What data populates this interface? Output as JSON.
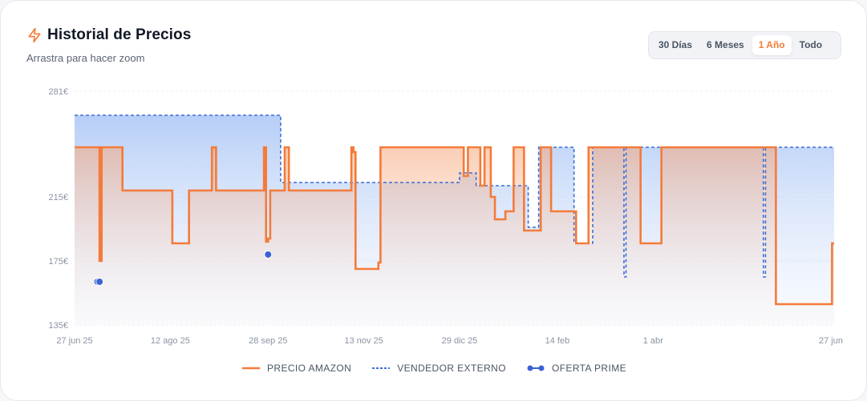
{
  "header": {
    "title": "Historial de Precios",
    "subtitle": "Arrastra para hacer zoom",
    "icon": "lightning-icon"
  },
  "range_buttons": [
    {
      "label": "30 Días",
      "active": false
    },
    {
      "label": "6 Meses",
      "active": false
    },
    {
      "label": "1 Año",
      "active": true
    },
    {
      "label": "Todo",
      "active": false
    }
  ],
  "legend": {
    "amazon": "PRECIO AMAZON",
    "external": "VENDEDOR EXTERNO",
    "prime": "OFERTA PRIME"
  },
  "colors": {
    "amazon": "#f47b3a",
    "external": "#3b6fd8",
    "prime": "#3b63d4",
    "accent": "#f47b3a"
  },
  "chart_data": {
    "type": "line",
    "step": true,
    "x_start": "2025-06-27",
    "x_end": "2026-06-27",
    "x_ticks": [
      {
        "date": "2025-06-27",
        "label": "27 jun 25"
      },
      {
        "date": "2025-08-12",
        "label": "12 ago 25"
      },
      {
        "date": "2025-09-28",
        "label": "28 sep 25"
      },
      {
        "date": "2025-11-13",
        "label": "13 nov 25"
      },
      {
        "date": "2025-12-29",
        "label": "29 dic 25"
      },
      {
        "date": "2026-02-14",
        "label": "14 feb"
      },
      {
        "date": "2026-04-01",
        "label": "1 abr"
      },
      {
        "date": "2026-06-27",
        "label": "27 jun"
      }
    ],
    "y_ticks": [
      {
        "value": 135,
        "label": "135€"
      },
      {
        "value": 175,
        "label": "175€"
      },
      {
        "value": 215,
        "label": "215€"
      },
      {
        "value": 281,
        "label": "281€"
      }
    ],
    "ylim": [
      135,
      281
    ],
    "grid": true,
    "legend_position": "bottom",
    "series": [
      {
        "name": "PRECIO AMAZON",
        "style": "solid",
        "points": [
          [
            "2025-06-27",
            246
          ],
          [
            "2025-07-09",
            246
          ],
          [
            "2025-07-09",
            175
          ],
          [
            "2025-07-10",
            175
          ],
          [
            "2025-07-10",
            246
          ],
          [
            "2025-07-20",
            246
          ],
          [
            "2025-07-20",
            219
          ],
          [
            "2025-08-13",
            219
          ],
          [
            "2025-08-13",
            186
          ],
          [
            "2025-08-21",
            186
          ],
          [
            "2025-08-21",
            219
          ],
          [
            "2025-09-01",
            219
          ],
          [
            "2025-09-01",
            246
          ],
          [
            "2025-09-03",
            246
          ],
          [
            "2025-09-03",
            219
          ],
          [
            "2025-09-26",
            219
          ],
          [
            "2025-09-26",
            246
          ],
          [
            "2025-09-27",
            246
          ],
          [
            "2025-09-27",
            187
          ],
          [
            "2025-09-28",
            187
          ],
          [
            "2025-09-28",
            189
          ],
          [
            "2025-09-29",
            189
          ],
          [
            "2025-09-29",
            219
          ],
          [
            "2025-10-06",
            219
          ],
          [
            "2025-10-06",
            246
          ],
          [
            "2025-10-08",
            246
          ],
          [
            "2025-10-08",
            219
          ],
          [
            "2025-11-07",
            219
          ],
          [
            "2025-11-07",
            246
          ],
          [
            "2025-11-08",
            246
          ],
          [
            "2025-11-08",
            243
          ],
          [
            "2025-11-09",
            243
          ],
          [
            "2025-11-09",
            170
          ],
          [
            "2025-11-20",
            170
          ],
          [
            "2025-11-20",
            174
          ],
          [
            "2025-11-21",
            174
          ],
          [
            "2025-11-21",
            246
          ],
          [
            "2025-12-31",
            246
          ],
          [
            "2025-12-31",
            228
          ],
          [
            "2026-01-02",
            228
          ],
          [
            "2026-01-02",
            246
          ],
          [
            "2026-01-08",
            246
          ],
          [
            "2026-01-08",
            222
          ],
          [
            "2026-01-10",
            222
          ],
          [
            "2026-01-10",
            246
          ],
          [
            "2026-01-13",
            246
          ],
          [
            "2026-01-13",
            215
          ],
          [
            "2026-01-15",
            215
          ],
          [
            "2026-01-15",
            201
          ],
          [
            "2026-01-20",
            201
          ],
          [
            "2026-01-20",
            206
          ],
          [
            "2026-01-24",
            206
          ],
          [
            "2026-01-24",
            246
          ],
          [
            "2026-01-29",
            246
          ],
          [
            "2026-01-29",
            194
          ],
          [
            "2026-02-06",
            194
          ],
          [
            "2026-02-06",
            246
          ],
          [
            "2026-02-11",
            246
          ],
          [
            "2026-02-11",
            206
          ],
          [
            "2026-02-23",
            206
          ],
          [
            "2026-02-23",
            186
          ],
          [
            "2026-03-01",
            186
          ],
          [
            "2026-03-01",
            246
          ],
          [
            "2026-03-26",
            246
          ],
          [
            "2026-03-26",
            186
          ],
          [
            "2026-04-05",
            186
          ],
          [
            "2026-04-05",
            246
          ],
          [
            "2026-05-30",
            246
          ],
          [
            "2026-05-30",
            148
          ],
          [
            "2026-06-26",
            148
          ],
          [
            "2026-06-26",
            186
          ],
          [
            "2026-06-27",
            186
          ]
        ]
      },
      {
        "name": "VENDEDOR EXTERNO",
        "style": "dashed",
        "points": [
          [
            "2025-06-27",
            266
          ],
          [
            "2025-10-04",
            266
          ],
          [
            "2025-10-04",
            224
          ],
          [
            "2025-12-29",
            224
          ],
          [
            "2025-12-29",
            230
          ],
          [
            "2026-01-06",
            230
          ],
          [
            "2026-01-06",
            222
          ],
          [
            "2026-01-31",
            222
          ],
          [
            "2026-01-31",
            196
          ],
          [
            "2026-02-05",
            196
          ],
          [
            "2026-02-05",
            246
          ],
          [
            "2026-02-22",
            246
          ],
          [
            "2026-02-22",
            186
          ],
          [
            "2026-03-03",
            186
          ],
          [
            "2026-03-03",
            246
          ],
          [
            "2026-03-18",
            246
          ],
          [
            "2026-03-18",
            165
          ],
          [
            "2026-03-19",
            165
          ],
          [
            "2026-03-19",
            246
          ],
          [
            "2026-05-24",
            246
          ],
          [
            "2026-05-24",
            165
          ],
          [
            "2026-05-25",
            165
          ],
          [
            "2026-05-25",
            246
          ],
          [
            "2026-06-27",
            246
          ]
        ]
      },
      {
        "name": "OFERTA PRIME",
        "style": "points",
        "points": [
          [
            "2025-07-08",
            162
          ],
          [
            "2025-07-09",
            162
          ],
          [
            "2025-09-28",
            179
          ]
        ]
      }
    ]
  }
}
